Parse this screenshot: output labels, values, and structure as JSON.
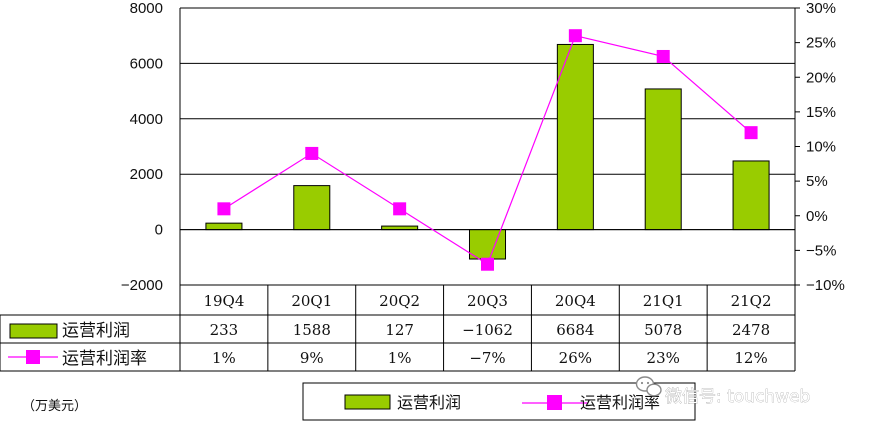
{
  "chart_data": {
    "type": "bar",
    "categories": [
      "19Q4",
      "20Q1",
      "20Q2",
      "20Q3",
      "20Q4",
      "21Q1",
      "21Q2"
    ],
    "series": [
      {
        "name": "运营利润",
        "type": "bar",
        "axis": "left",
        "color": "#99cc00",
        "values": [
          233,
          1588,
          127,
          -1062,
          6684,
          5078,
          2478
        ]
      },
      {
        "name": "运营利润率",
        "type": "line",
        "axis": "right",
        "color": "#ff00ff",
        "values": [
          1,
          9,
          1,
          -7,
          26,
          23,
          12
        ]
      }
    ],
    "table_rows": [
      [
        "233",
        "1588",
        "127",
        "−1062",
        "6684",
        "5078",
        "2478"
      ],
      [
        "1%",
        "9%",
        "1%",
        "−7%",
        "26%",
        "23%",
        "12%"
      ]
    ],
    "y_left": {
      "ylim": [
        -2000,
        8000
      ],
      "ticks": [
        {
          "v": 8000,
          "label": "8000"
        },
        {
          "v": 6000,
          "label": "6000"
        },
        {
          "v": 4000,
          "label": "4000"
        },
        {
          "v": 2000,
          "label": "2000"
        },
        {
          "v": 0,
          "label": "0"
        },
        {
          "v": -2000,
          "label": "−2000"
        }
      ]
    },
    "y_right": {
      "ylim": [
        -10,
        30
      ],
      "ticks": [
        {
          "v": 30,
          "label": "30%"
        },
        {
          "v": 25,
          "label": "25%"
        },
        {
          "v": 20,
          "label": "20%"
        },
        {
          "v": 15,
          "label": "15%"
        },
        {
          "v": 10,
          "label": "10%"
        },
        {
          "v": 5,
          "label": "5%"
        },
        {
          "v": 0,
          "label": "0%"
        },
        {
          "v": -5,
          "label": "−5%"
        },
        {
          "v": -10,
          "label": "−10%"
        }
      ]
    },
    "gridlines": true,
    "legend_position": "bottom-center",
    "unit_label": "（万美元）"
  },
  "legend": {
    "bar_label": "运营利润",
    "line_label": "运营利润率"
  },
  "watermark": {
    "text": "微信号: touchweb"
  }
}
